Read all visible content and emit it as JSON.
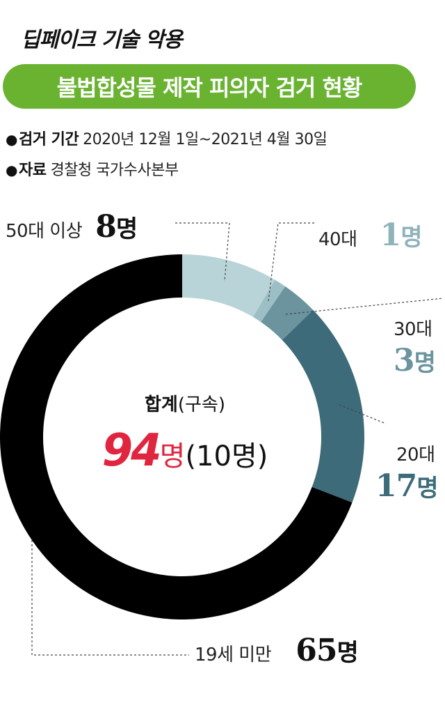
{
  "header": {
    "kicker": "딥페이크 기술 악용",
    "title": "불법합성물 제작 피의자 검거 현황"
  },
  "meta": {
    "bullet": "●",
    "period_label": "검거 기간",
    "period_value": "2020년 12월 1일~2021년 4월 30일",
    "source_label": "자료",
    "source_value": "경찰청 국가수사본부"
  },
  "center": {
    "title": "합계",
    "title_sub": "(구속)",
    "total": "94",
    "unit": "명",
    "detained": "(10명)"
  },
  "colors": {
    "banner": "#69b331",
    "total": "#e0253f",
    "slice_50plus": "#b9d4d8",
    "slice_40s": "#9cbfc6",
    "slice_30s": "#6b949f",
    "slice_20s": "#3d6b79",
    "slice_under19": "#000000"
  },
  "chart_data": {
    "type": "pie",
    "style": "donut",
    "unit": "명",
    "total": 94,
    "categories": [
      "50대 이상",
      "40대",
      "30대",
      "20대",
      "19세 미만"
    ],
    "values": [
      8,
      1,
      3,
      17,
      65
    ],
    "value_labels": [
      "8",
      "1",
      "3",
      "17",
      "65"
    ],
    "colors": [
      "#b9d4d8",
      "#9cbfc6",
      "#6b949f",
      "#3d6b79",
      "#000000"
    ],
    "label_colors": [
      "#111111",
      "#8fb3bb",
      "#6b949f",
      "#3d6b79",
      "#111111"
    ],
    "start_angle_deg": 0,
    "direction": "clockwise"
  }
}
